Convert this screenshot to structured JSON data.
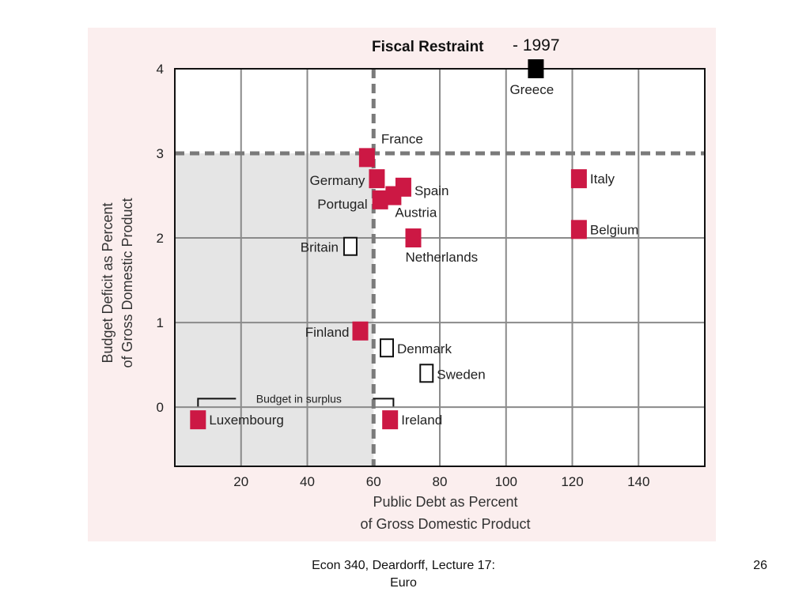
{
  "slide": {
    "footer_line1": "Econ 340, Deardorff, Lecture 17:",
    "footer_line2": "Euro",
    "page_number": "26"
  },
  "chart_data": {
    "type": "scatter",
    "title": "Fiscal Restraint",
    "title_suffix": "- 1997",
    "xlabel_line1": "Public Debt as Percent",
    "xlabel_line2": "of Gross Domestic Product",
    "ylabel_line1": "Budget Deficit as Percent",
    "ylabel_line2": "of Gross Domestic Product",
    "xlim": [
      0,
      160
    ],
    "ylim": [
      -0.7,
      4
    ],
    "x_ticks": [
      20,
      40,
      60,
      80,
      100,
      120,
      140
    ],
    "y_ticks": [
      0,
      1,
      2,
      3,
      4
    ],
    "reference_lines": {
      "debt_limit_x": 60,
      "deficit_limit_y": 3
    },
    "bracket_label": "Budget in surplus",
    "marker_colors": {
      "eu_member": "#cc1844",
      "greece": "#000000",
      "outside": "#ffffff"
    },
    "points": [
      {
        "country": "Greece",
        "x": 109,
        "y": 4.0,
        "marker": "greece"
      },
      {
        "country": "France",
        "x": 58,
        "y": 2.95,
        "marker": "eu_member"
      },
      {
        "country": "Germany",
        "x": 61,
        "y": 2.7,
        "marker": "eu_member"
      },
      {
        "country": "Spain",
        "x": 69,
        "y": 2.6,
        "marker": "eu_member"
      },
      {
        "country": "Portugal",
        "x": 62,
        "y": 2.45,
        "marker": "eu_member"
      },
      {
        "country": "Austria",
        "x": 66,
        "y": 2.5,
        "marker": "eu_member"
      },
      {
        "country": "Italy",
        "x": 122,
        "y": 2.7,
        "marker": "eu_member"
      },
      {
        "country": "Belgium",
        "x": 122,
        "y": 2.1,
        "marker": "eu_member"
      },
      {
        "country": "Britain",
        "x": 53,
        "y": 1.9,
        "marker": "outside"
      },
      {
        "country": "Netherlands",
        "x": 72,
        "y": 2.0,
        "marker": "eu_member"
      },
      {
        "country": "Finland",
        "x": 56,
        "y": 0.9,
        "marker": "eu_member"
      },
      {
        "country": "Denmark",
        "x": 64,
        "y": 0.7,
        "marker": "outside"
      },
      {
        "country": "Sweden",
        "x": 76,
        "y": 0.4,
        "marker": "outside"
      },
      {
        "country": "Luxembourg",
        "x": 7,
        "y": -0.15,
        "marker": "eu_member"
      },
      {
        "country": "Ireland",
        "x": 65,
        "y": -0.15,
        "marker": "eu_member"
      }
    ]
  }
}
